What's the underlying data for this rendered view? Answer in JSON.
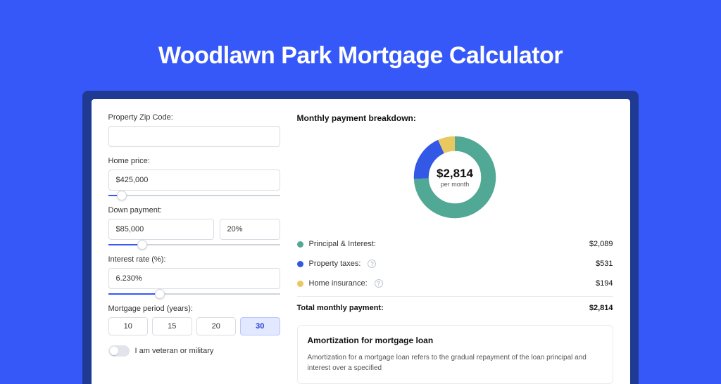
{
  "page": {
    "title": "Woodlawn Park Mortgage Calculator",
    "background_color": "#3758f9",
    "outer_card_color": "#1f3a93",
    "card_color": "#ffffff"
  },
  "form": {
    "zip": {
      "label": "Property Zip Code:",
      "value": ""
    },
    "home_price": {
      "label": "Home price:",
      "value": "$425,000",
      "slider_pct": 8
    },
    "down_payment": {
      "label": "Down payment:",
      "value": "$85,000",
      "pct": "20%",
      "slider_pct": 20
    },
    "interest_rate": {
      "label": "Interest rate (%):",
      "value": "6.230%",
      "slider_pct": 30
    },
    "period": {
      "label": "Mortgage period (years):",
      "options": [
        "10",
        "15",
        "20",
        "30"
      ],
      "selected": "30"
    },
    "veteran": {
      "label": "I am veteran or military",
      "checked": false
    }
  },
  "breakdown": {
    "section_title": "Monthly payment breakdown:",
    "donut": {
      "amount": "$2,814",
      "sub": "per month",
      "slices": [
        {
          "key": "principal_interest",
          "value": 2089,
          "pct": 74.2,
          "color": "#51a894"
        },
        {
          "key": "property_taxes",
          "value": 531,
          "pct": 18.9,
          "color": "#3458e6"
        },
        {
          "key": "home_insurance",
          "value": 194,
          "pct": 6.9,
          "color": "#e9c85f"
        }
      ]
    },
    "items": [
      {
        "label": "Principal & Interest:",
        "value": "$2,089",
        "color": "#51a894",
        "help": false
      },
      {
        "label": "Property taxes:",
        "value": "$531",
        "color": "#3458e6",
        "help": true
      },
      {
        "label": "Home insurance:",
        "value": "$194",
        "color": "#e9c85f",
        "help": true
      }
    ],
    "total": {
      "label": "Total monthly payment:",
      "value": "$2,814"
    }
  },
  "amortization": {
    "title": "Amortization for mortgage loan",
    "text": "Amortization for a mortgage loan refers to the gradual repayment of the loan principal and interest over a specified"
  }
}
